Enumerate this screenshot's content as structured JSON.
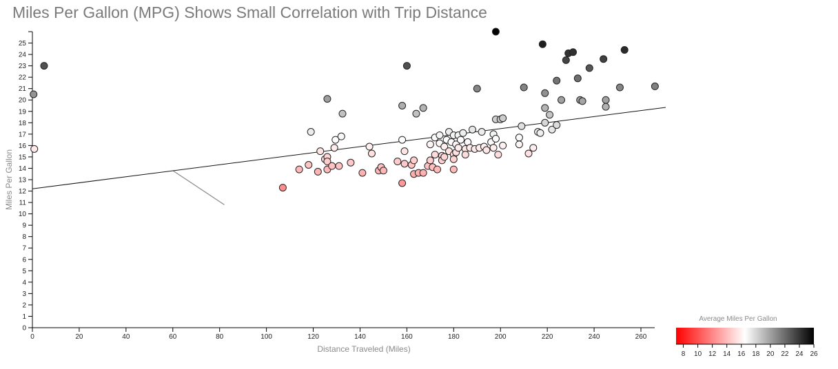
{
  "chart_data": {
    "type": "scatter",
    "title": "Miles Per Gallon (MPG) Shows Small Correlation with Trip Distance",
    "xlabel": "Distance Traveled (Miles)",
    "ylabel": "Miles Per Gallon",
    "xlim": [
      0,
      265
    ],
    "ylim": [
      0,
      26
    ],
    "x_ticks": [
      0,
      20,
      40,
      60,
      80,
      100,
      120,
      140,
      160,
      180,
      200,
      220,
      240,
      260
    ],
    "y_ticks": [
      0,
      1,
      2,
      3,
      4,
      5,
      6,
      7,
      8,
      9,
      10,
      11,
      12,
      13,
      14,
      15,
      16,
      17,
      18,
      19,
      20,
      21,
      22,
      23,
      24,
      25
    ],
    "grid": false,
    "trendline": {
      "x": [
        0,
        265
      ],
      "y": [
        12.2,
        19.2
      ]
    },
    "annotation_line": {
      "x": [
        60,
        82
      ],
      "y": [
        13.8,
        10.8
      ]
    },
    "color_scale": {
      "title": "Average Miles Per Gallon",
      "domain": [
        7,
        16.5,
        26
      ],
      "colors": [
        "#ff0000",
        "#ffffff",
        "#000000"
      ],
      "ticks": [
        8,
        10,
        12,
        14,
        16,
        18,
        20,
        22,
        24,
        26
      ],
      "position": "bottom-right"
    },
    "points": [
      [
        0.5,
        20.5
      ],
      [
        5,
        23
      ],
      [
        0.8,
        15.7
      ],
      [
        107,
        12.3
      ],
      [
        114,
        13.9
      ],
      [
        118,
        14.3
      ],
      [
        119,
        17.2
      ],
      [
        122,
        13.7
      ],
      [
        123,
        15.5
      ],
      [
        125,
        14.8
      ],
      [
        126,
        20.1
      ],
      [
        126,
        15
      ],
      [
        126,
        14.6
      ],
      [
        126,
        13.9
      ],
      [
        128,
        14.2
      ],
      [
        129,
        15.8
      ],
      [
        129.5,
        16.5
      ],
      [
        131,
        14.2
      ],
      [
        132,
        16.8
      ],
      [
        132.5,
        18.8
      ],
      [
        136,
        14.5
      ],
      [
        141,
        13.6
      ],
      [
        144,
        15.9
      ],
      [
        145,
        15.3
      ],
      [
        148,
        13.8
      ],
      [
        149,
        14.1
      ],
      [
        150,
        13.8
      ],
      [
        156,
        14.6
      ],
      [
        158,
        19.5
      ],
      [
        158,
        16.5
      ],
      [
        158,
        12.7
      ],
      [
        159,
        15.5
      ],
      [
        159,
        14.4
      ],
      [
        160,
        23
      ],
      [
        162,
        14.3
      ],
      [
        163,
        14.7
      ],
      [
        163,
        13.5
      ],
      [
        164,
        18.8
      ],
      [
        165,
        13.6
      ],
      [
        167,
        19.3
      ],
      [
        167,
        13.6
      ],
      [
        169,
        14.2
      ],
      [
        170,
        16.1
      ],
      [
        170,
        14.7
      ],
      [
        171,
        14.1
      ],
      [
        172,
        15.2
      ],
      [
        172,
        16.7
      ],
      [
        173,
        13.9
      ],
      [
        174,
        16.9
      ],
      [
        174,
        16.2
      ],
      [
        175,
        15.1
      ],
      [
        175,
        14.7
      ],
      [
        176,
        15.9
      ],
      [
        176,
        15
      ],
      [
        177,
        16.5
      ],
      [
        178,
        17.2
      ],
      [
        178,
        15.5
      ],
      [
        179,
        16.3
      ],
      [
        180,
        16.9
      ],
      [
        180,
        15.2
      ],
      [
        180,
        14.8
      ],
      [
        180,
        13.9
      ],
      [
        181,
        16.1
      ],
      [
        181,
        15.4
      ],
      [
        182,
        16.9
      ],
      [
        182,
        15.8
      ],
      [
        183,
        16.5
      ],
      [
        184,
        17.1
      ],
      [
        185,
        15.7
      ],
      [
        185,
        15.2
      ],
      [
        186,
        16.3
      ],
      [
        187,
        15.8
      ],
      [
        188,
        17.4
      ],
      [
        189,
        15.7
      ],
      [
        190,
        21
      ],
      [
        191,
        15.8
      ],
      [
        192,
        17.2
      ],
      [
        193,
        15.9
      ],
      [
        194,
        15.6
      ],
      [
        196,
        16.3
      ],
      [
        197,
        17
      ],
      [
        197,
        15.8
      ],
      [
        198,
        18.3
      ],
      [
        198,
        16.6
      ],
      [
        199,
        15.2
      ],
      [
        200,
        18.3
      ],
      [
        201,
        16
      ],
      [
        201,
        18.4
      ],
      [
        208,
        16.7
      ],
      [
        208,
        16.1
      ],
      [
        209,
        17.7
      ],
      [
        210,
        21.1
      ],
      [
        212,
        15.3
      ],
      [
        214,
        15.8
      ],
      [
        216,
        17.2
      ],
      [
        217,
        17.1
      ],
      [
        218,
        24.9
      ],
      [
        219,
        20.6
      ],
      [
        219,
        19.3
      ],
      [
        219,
        18
      ],
      [
        221,
        18.7
      ],
      [
        222,
        17.4
      ],
      [
        224,
        21.7
      ],
      [
        224,
        17.8
      ],
      [
        226,
        20
      ],
      [
        228,
        23.5
      ],
      [
        229,
        24.1
      ],
      [
        231,
        24.2
      ],
      [
        233,
        21.9
      ],
      [
        234,
        20
      ],
      [
        235,
        19.9
      ],
      [
        238,
        22.8
      ],
      [
        244,
        23.6
      ],
      [
        245,
        20
      ],
      [
        245,
        19.4
      ],
      [
        251,
        21.1
      ],
      [
        253,
        24.4
      ],
      [
        266,
        21.2
      ],
      [
        198,
        26
      ]
    ]
  }
}
